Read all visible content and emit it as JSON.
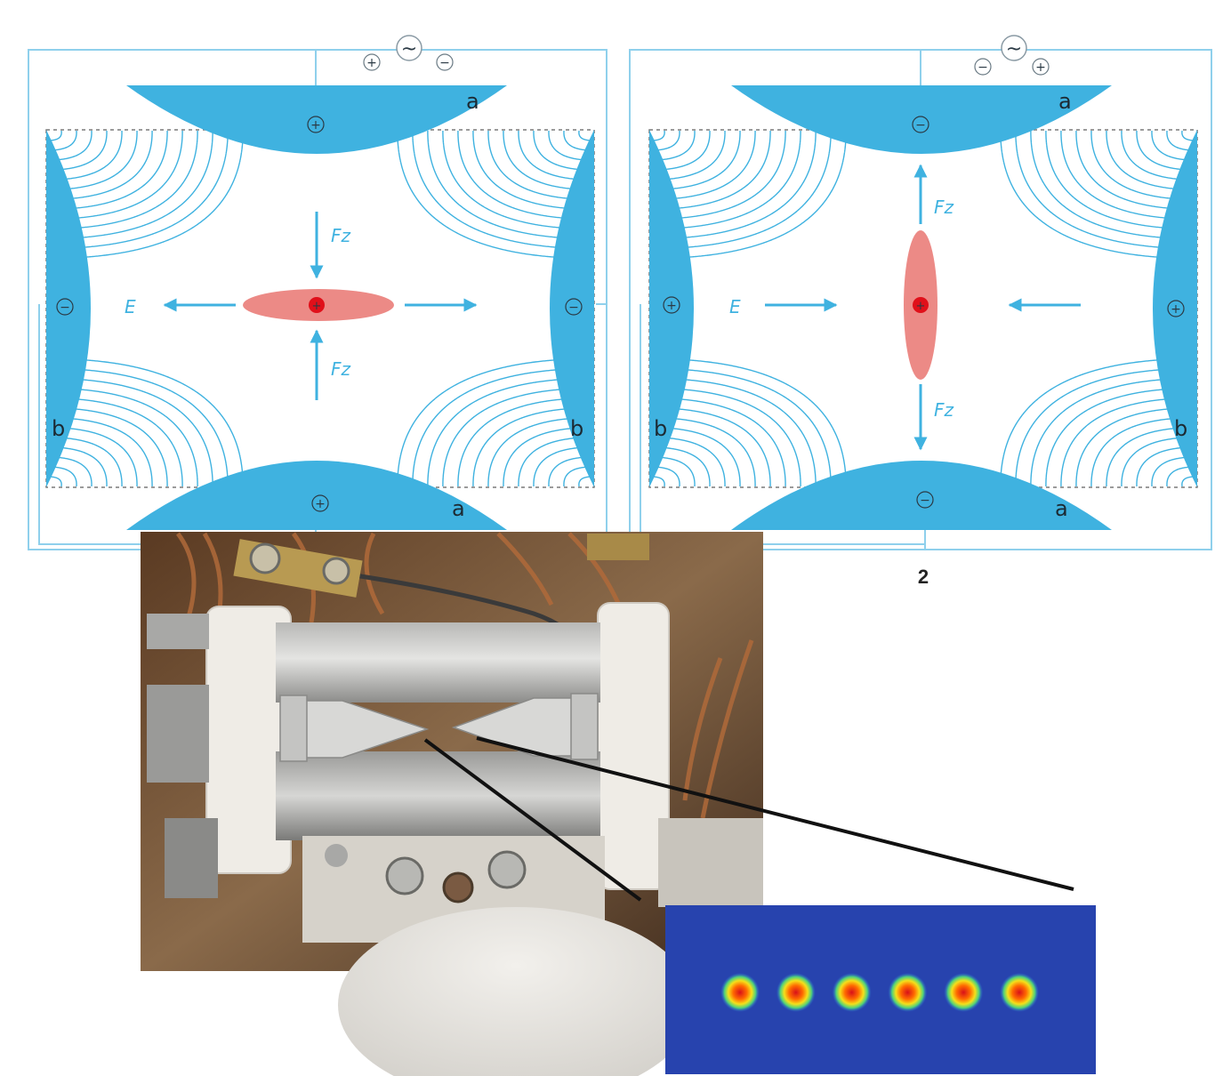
{
  "colors": {
    "electrode": "#3fb2e0",
    "wire": "#8fd0ec",
    "field_line": "#3fb2e0",
    "ion_cloud": "#ec8a86",
    "ion_core": "#e0101a",
    "frame_dash": "#7a7a7a"
  },
  "icons": {
    "ac_source": "ac-source-icon",
    "plus": "plus-sign-icon",
    "minus": "minus-sign-icon"
  },
  "panel1": {
    "ac_symbol": "~",
    "polarity_left": "+",
    "polarity_right": "−",
    "electrode_top_sign": "+",
    "electrode_bottom_sign": "+",
    "electrode_left_sign": "−",
    "electrode_right_sign": "−",
    "label_a_top": "a",
    "label_a_bottom": "a",
    "label_b_left": "b",
    "label_b_right": "b",
    "field_label": "E",
    "force_label_top": "Fz",
    "force_label_bottom": "Fz",
    "ion_sign": "+"
  },
  "panel2": {
    "ac_symbol": "~",
    "polarity_left": "−",
    "polarity_right": "+",
    "electrode_top_sign": "−",
    "electrode_bottom_sign": "−",
    "electrode_left_sign": "+",
    "electrode_right_sign": "+",
    "label_a_top": "a",
    "label_a_bottom": "a",
    "label_b_left": "b",
    "label_b_right": "b",
    "field_label": "E",
    "force_label_top": "Fz",
    "force_label_bottom": "Fz",
    "ion_sign": "+",
    "caption": "2"
  },
  "photo": {
    "description_icon": "ion-trap-photo-icon"
  },
  "ion_image": {
    "ion_count": 6
  }
}
